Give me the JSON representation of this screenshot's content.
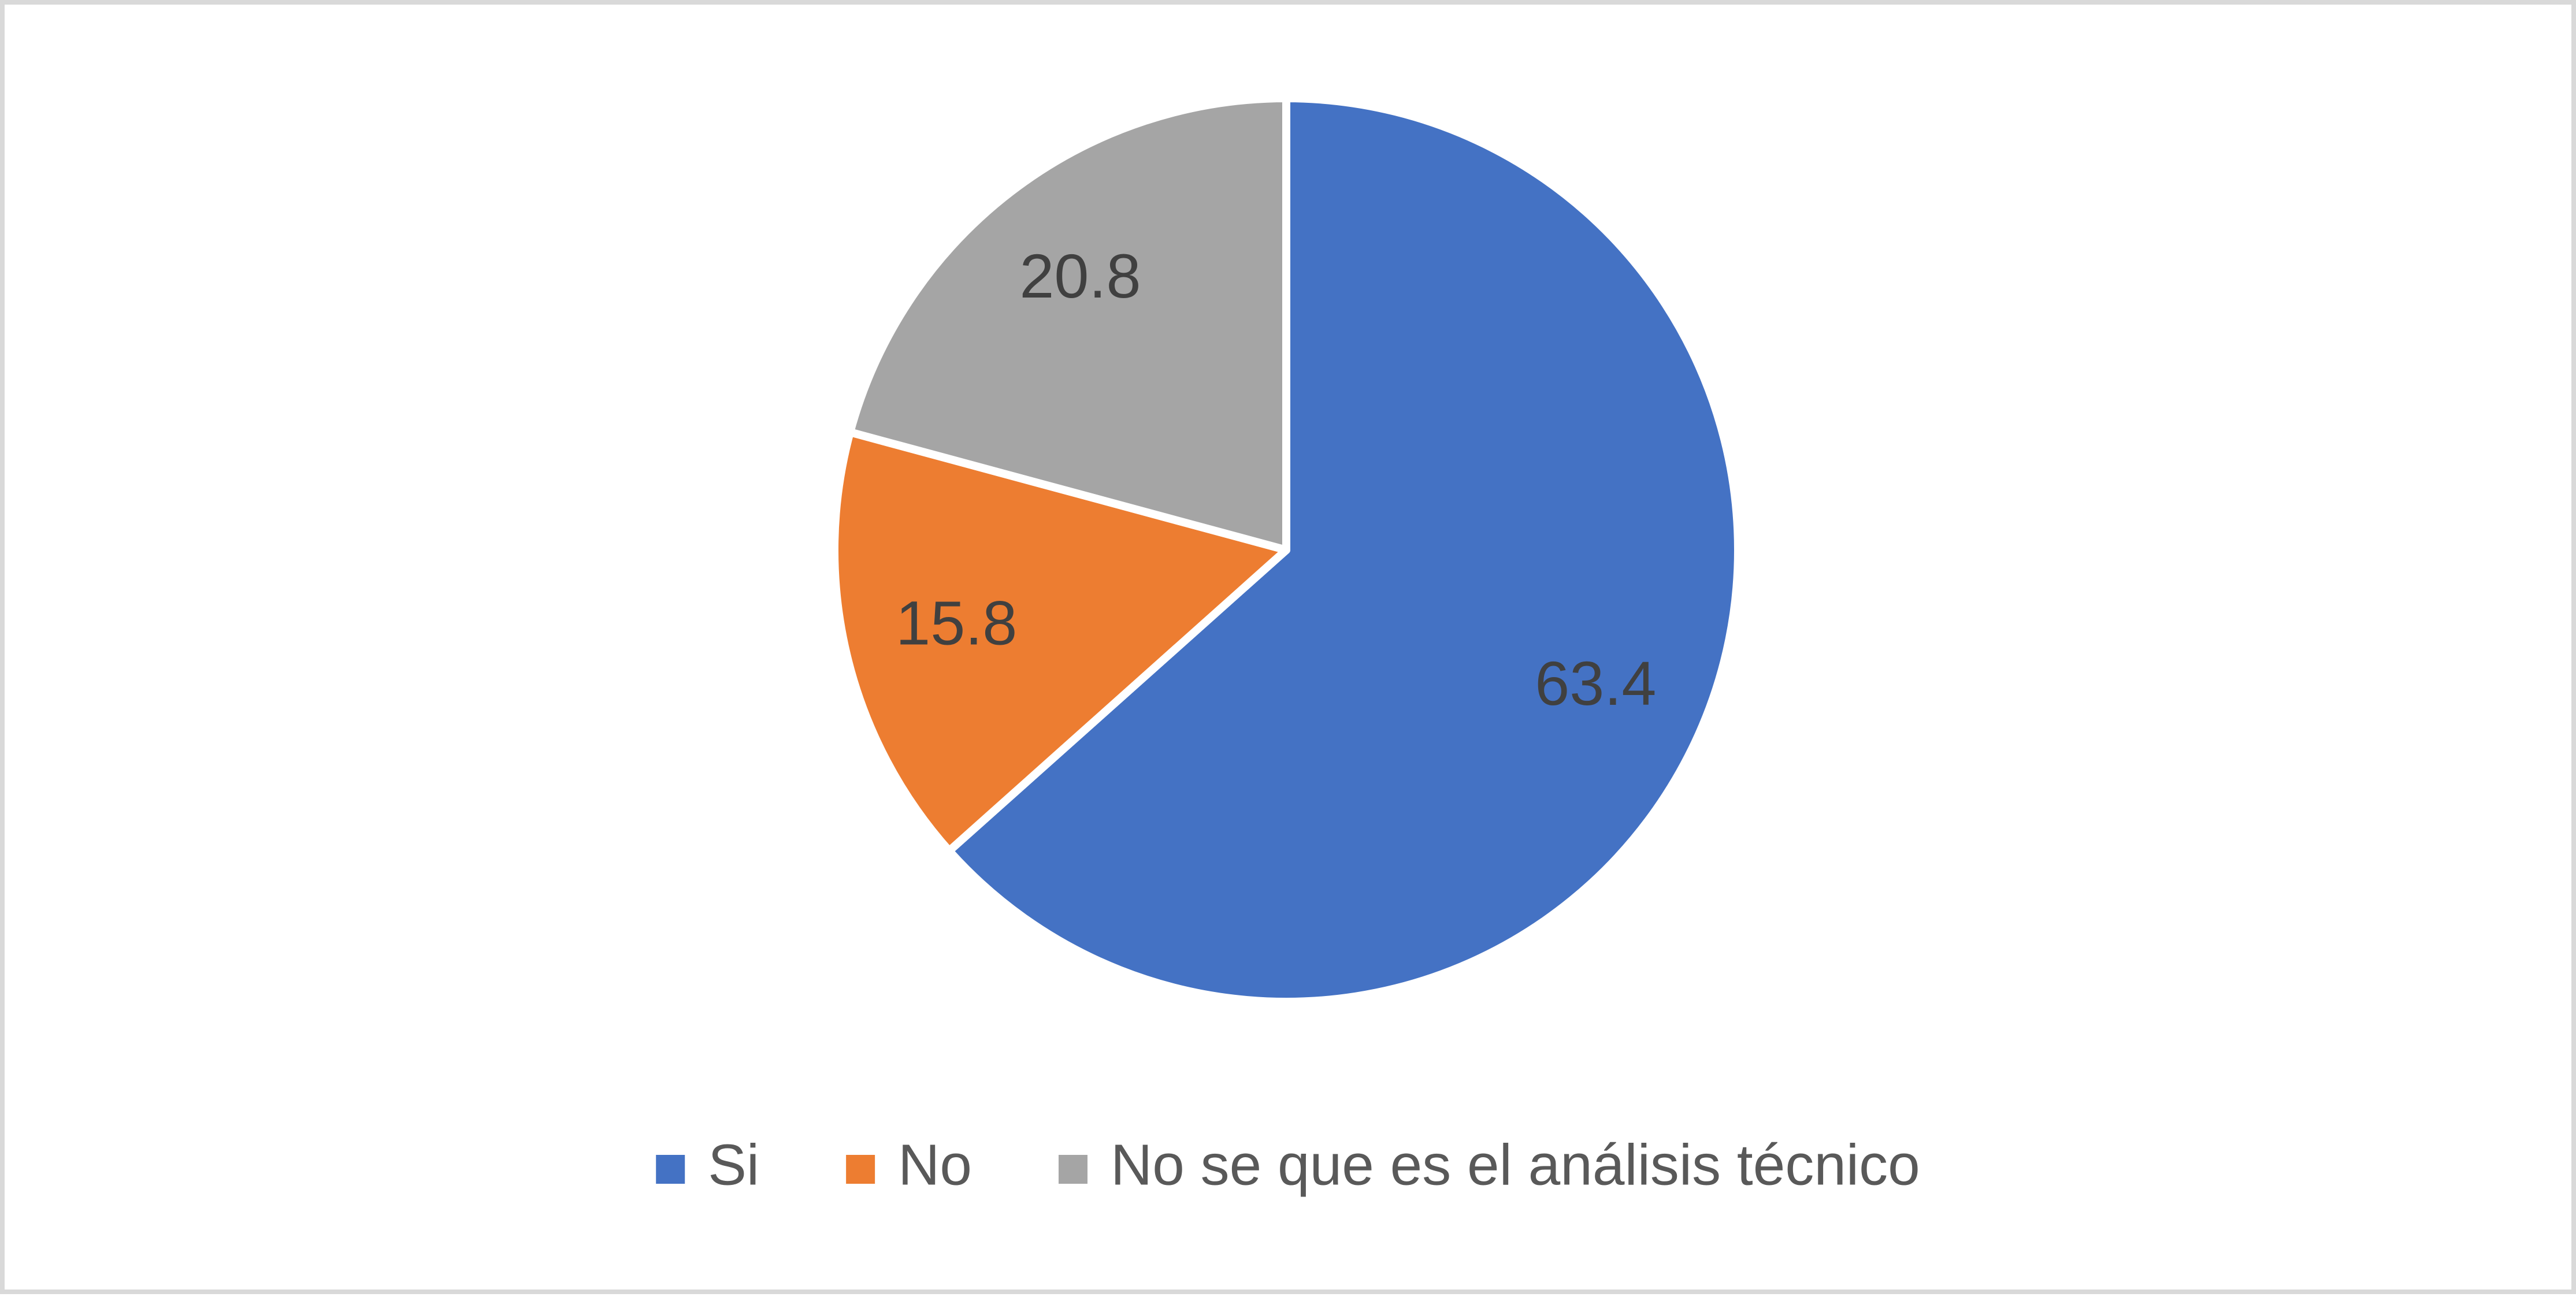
{
  "chart_data": {
    "type": "pie",
    "categories": [
      "Si",
      "No",
      "No se que es el análisis técnico"
    ],
    "values": [
      63.4,
      15.8,
      20.8
    ],
    "colors": [
      "#4472c4",
      "#ed7d31",
      "#a5a5a5"
    ],
    "legend": "bottom"
  }
}
